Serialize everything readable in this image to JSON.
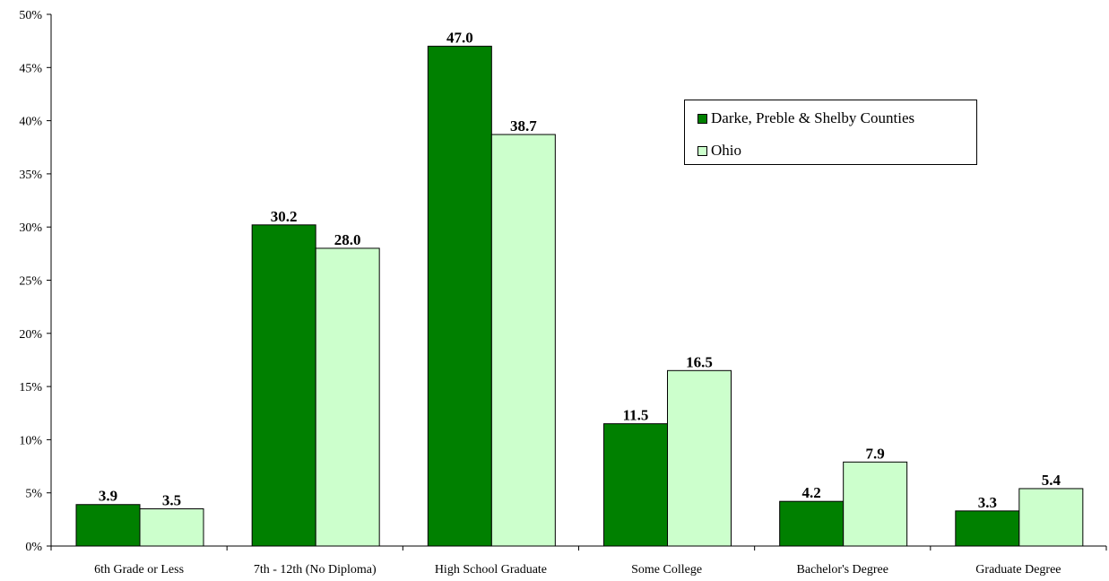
{
  "chart_data": {
    "type": "bar",
    "title": "",
    "xlabel": "",
    "ylabel": "",
    "categories": [
      "6th Grade or Less",
      "7th - 12th (No Diploma)",
      "High School Graduate",
      "Some College",
      "Bachelor's Degree",
      "Graduate Degree"
    ],
    "series": [
      {
        "name": "Darke, Preble & Shelby Counties",
        "color": "#008000",
        "values": [
          3.9,
          30.2,
          47.0,
          11.5,
          4.2,
          3.3
        ],
        "labels": [
          "3.9",
          "30.2",
          "47.0",
          "11.5",
          "4.2",
          "3.3"
        ]
      },
      {
        "name": "Ohio",
        "color": "#ccffcc",
        "values": [
          3.5,
          28.0,
          38.7,
          16.5,
          7.9,
          5.4
        ],
        "labels": [
          "3.5",
          "28.0",
          "38.7",
          "16.5",
          "7.9",
          "5.4"
        ]
      }
    ],
    "ylim": [
      0,
      50
    ],
    "yticks": [
      0,
      5,
      10,
      15,
      20,
      25,
      30,
      35,
      40,
      45,
      50
    ],
    "ytick_labels": [
      "0%",
      "5%",
      "10%",
      "15%",
      "20%",
      "25%",
      "30%",
      "35%",
      "40%",
      "45%",
      "50%"
    ],
    "grid": false,
    "legend_position": "right"
  }
}
